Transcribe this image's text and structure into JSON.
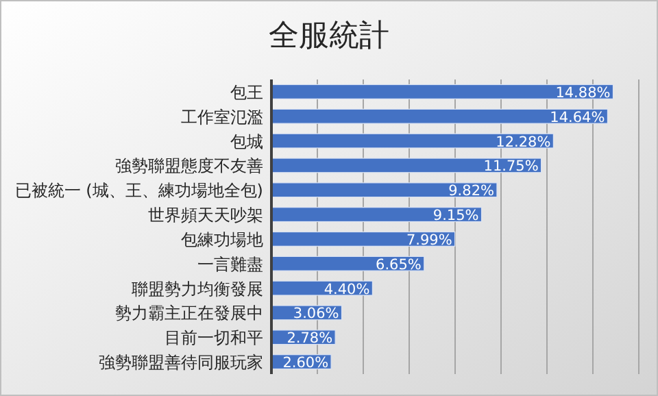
{
  "chart_data": {
    "type": "bar",
    "orientation": "horizontal",
    "title": "全服統計",
    "categories": [
      "包王",
      "工作室氾濫",
      "包城",
      "強勢聯盟態度不友善",
      "已被統一 (城、王、練功場地全包)",
      "世界頻天天吵架",
      "包練功場地",
      "一言難盡",
      "聯盟勢力均衡發展",
      "勢力霸主正在發展中",
      "目前一切和平",
      "強勢聯盟善待同服玩家"
    ],
    "values": [
      14.88,
      14.64,
      12.28,
      11.75,
      9.82,
      9.15,
      7.99,
      6.65,
      4.4,
      3.06,
      2.78,
      2.6
    ],
    "value_labels": [
      "14.88%",
      "14.64%",
      "12.28%",
      "11.75%",
      "9.82%",
      "9.15%",
      "7.99%",
      "6.65%",
      "4.40%",
      "3.06%",
      "2.78%",
      "2.60%"
    ],
    "color": "#4472c4",
    "xlim": [
      0,
      16
    ],
    "xticks": [
      {
        "value": 0,
        "label": null
      },
      {
        "value": 2,
        "label": null
      },
      {
        "value": 4,
        "label": null
      },
      {
        "value": 6,
        "label": null
      },
      {
        "value": 8,
        "label": null
      },
      {
        "value": 10,
        "label": null
      },
      {
        "value": 12,
        "label": null
      },
      {
        "value": 14,
        "label": null
      },
      {
        "value": 16,
        "label": null
      }
    ],
    "grid": "x",
    "tick_labels": "y"
  }
}
